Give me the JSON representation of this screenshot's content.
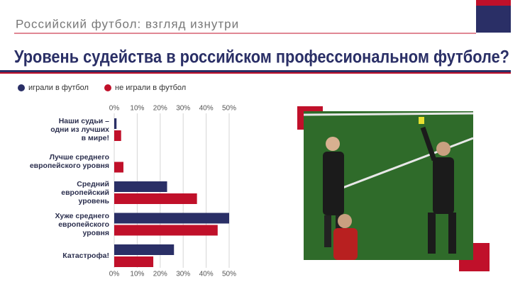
{
  "chart_data": {
    "type": "bar",
    "orientation": "horizontal",
    "subtitle": "Российский футбол: взгляд изнутри",
    "title": "Уровень судейства в российском профессиональном футболе?",
    "categories": [
      "Наши судьи –\nодни из лучших\nв мире!",
      "Лучше среднего\nевропейского уровня",
      "Средний\nевропейский\nуровень",
      "Хуже среднего\nевропейского\nуровня",
      "Катастрофа!"
    ],
    "series": [
      {
        "name": "играли в футбол",
        "color": "#2a2f66",
        "values": [
          1,
          0,
          23,
          50,
          26
        ]
      },
      {
        "name": "не играли в футбол",
        "color": "#c0102a",
        "values": [
          3,
          4,
          36,
          45,
          17
        ]
      }
    ],
    "xlim": [
      0,
      50
    ],
    "xticks": [
      {
        "value": 0,
        "label": "0%"
      },
      {
        "value": 10,
        "label": "10%"
      },
      {
        "value": 20,
        "label": "20%"
      },
      {
        "value": 30,
        "label": "30%"
      },
      {
        "value": 40,
        "label": "40%"
      },
      {
        "value": 50,
        "label": "50%"
      }
    ],
    "grid": true
  }
}
